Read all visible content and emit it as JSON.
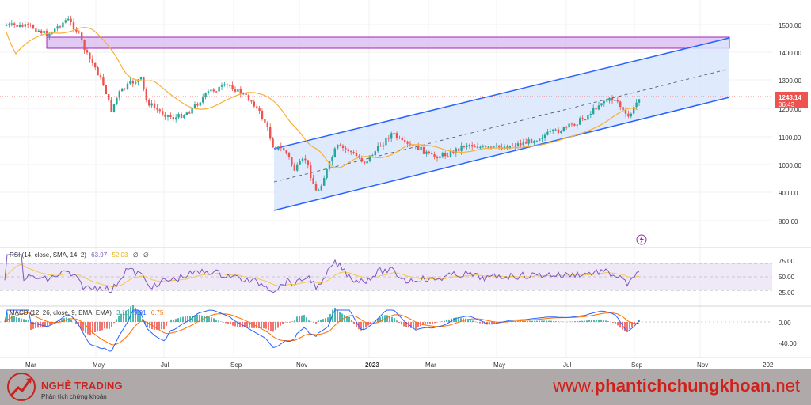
{
  "price_axis": {
    "labels": [
      "1500.00",
      "1400.00",
      "1300.00",
      "1200.00",
      "1100.00",
      "1000.00",
      "900.00",
      "800.00"
    ],
    "current_price": "1243.14",
    "countdown": "06:43",
    "price_label_color": "#ef5350"
  },
  "rsi": {
    "legend_name": "RSI (14, close, SMA, 14, 2)",
    "legend_rsi": "63.97",
    "legend_sma": "52.03",
    "legend_ext1": "∅",
    "legend_ext2": "∅",
    "axis_labels": [
      "75.00",
      "50.00",
      "25.00"
    ],
    "line_color": "#7e57c2",
    "sma_color": "#f2c94c"
  },
  "macd": {
    "legend_name": "MACD (12, 26, close, 9, EMA, EMA)",
    "legend_hist": "3.16",
    "legend_macd": "9.91",
    "legend_signal": "6.75",
    "axis_labels": [
      "0.00",
      "-40.00"
    ],
    "macd_color": "#2962ff",
    "signal_color": "#ff6d00",
    "hist_up_color": "#26a69a",
    "hist_down_color": "#ef5350"
  },
  "time_axis": {
    "labels": [
      "Mar",
      "May",
      "Jul",
      "Sep",
      "Nov",
      "2023",
      "Mar",
      "May",
      "Jul",
      "Sep",
      "Nov",
      "202"
    ]
  },
  "colors": {
    "up_candle": "#26a69a",
    "down_candle": "#ef5350",
    "ma_line": "#f7b036",
    "channel_line": "#2962ff",
    "channel_fill": "#dbe6fd",
    "resistance_zone": "#d9b8f2",
    "resistance_border": "#9c27b0"
  },
  "icons": {
    "alert": "lightning-icon",
    "logo": "trend-arrow-logo"
  },
  "footer": {
    "brand": "NGHỀ TRADING",
    "tagline": "Phân tích chứng khoán",
    "site_prefix": "www.",
    "site_main": "phantichchungkhoan",
    "site_suffix": ".net"
  }
}
